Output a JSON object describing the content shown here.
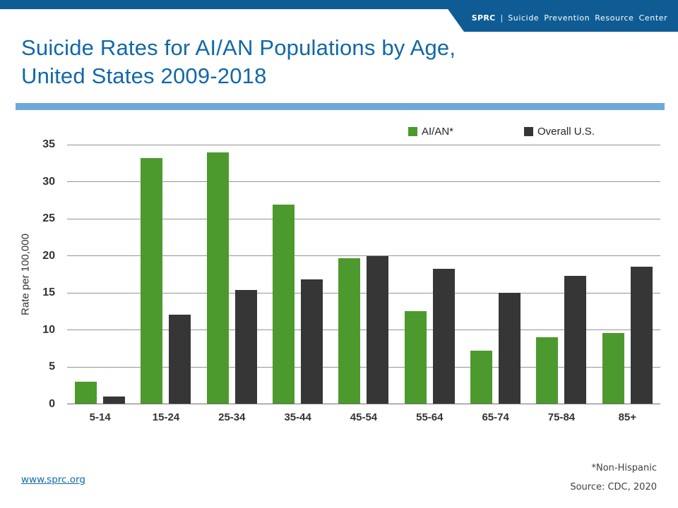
{
  "header": {
    "brand": "SPRC",
    "separator": "|",
    "org_name": "Suicide Prevention Resource Center"
  },
  "title": {
    "line1": "Suicide Rates for AI/AN Populations by Age,",
    "line2": "United States 2009-2018"
  },
  "footer": {
    "link": "www.sprc.org",
    "note1": "*Non-Hispanic",
    "note2": "Source: CDC, 2020"
  },
  "colors": {
    "header_blue": "#0F5C94",
    "title_blue": "#1168A8",
    "divider_blue": "#6FA9D9",
    "aian_green": "#4C9A2D",
    "overall_dark": "#363636",
    "gridline_gray": "#949494",
    "axis_text": "#333333"
  },
  "chart_data": {
    "type": "bar",
    "title": "",
    "xlabel": "",
    "ylabel": "Rate per 100,000",
    "ylim": [
      0,
      35
    ],
    "ytick_step": 5,
    "yticks": [
      0,
      5,
      10,
      15,
      20,
      25,
      30,
      35
    ],
    "grid": "horizontal",
    "legend_position": "top-right",
    "categories": [
      "5-14",
      "15-24",
      "25-34",
      "35-44",
      "45-54",
      "55-64",
      "65-74",
      "75-84",
      "85+"
    ],
    "series": [
      {
        "name": "AI/AN*",
        "color": "#4C9A2D",
        "values": [
          3.0,
          33.2,
          34.0,
          26.9,
          19.6,
          12.5,
          7.2,
          9.0,
          9.5
        ]
      },
      {
        "name": "Overall U.S.",
        "color": "#363636",
        "values": [
          1.0,
          12.0,
          15.4,
          16.8,
          19.9,
          18.2,
          15.0,
          17.3,
          18.5
        ]
      }
    ]
  }
}
